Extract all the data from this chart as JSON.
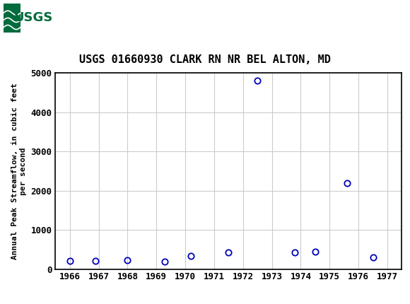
{
  "title": "USGS 01660930 CLARK RN NR BEL ALTON, MD",
  "ylabel": "Annual Peak Streamflow, in cubic feet\nper second",
  "data_points": [
    [
      1966.0,
      200
    ],
    [
      1966.9,
      205
    ],
    [
      1968.0,
      230
    ],
    [
      1969.3,
      182
    ],
    [
      1970.2,
      340
    ],
    [
      1971.5,
      420
    ],
    [
      1972.5,
      4800
    ],
    [
      1973.8,
      430
    ],
    [
      1974.5,
      450
    ],
    [
      1975.6,
      2190
    ],
    [
      1976.5,
      300
    ]
  ],
  "xlim": [
    1965.5,
    1977.5
  ],
  "ylim": [
    0,
    5000
  ],
  "yticks": [
    0,
    1000,
    2000,
    3000,
    4000,
    5000
  ],
  "xticks": [
    1966,
    1967,
    1968,
    1969,
    1970,
    1971,
    1972,
    1973,
    1974,
    1975,
    1976,
    1977
  ],
  "marker_color": "#0000bb",
  "marker_size": 6,
  "grid_color": "#cccccc",
  "bg_color": "#ffffff",
  "header_color": "#006b3c",
  "title_fontsize": 11,
  "axis_label_fontsize": 8,
  "tick_fontsize": 9
}
